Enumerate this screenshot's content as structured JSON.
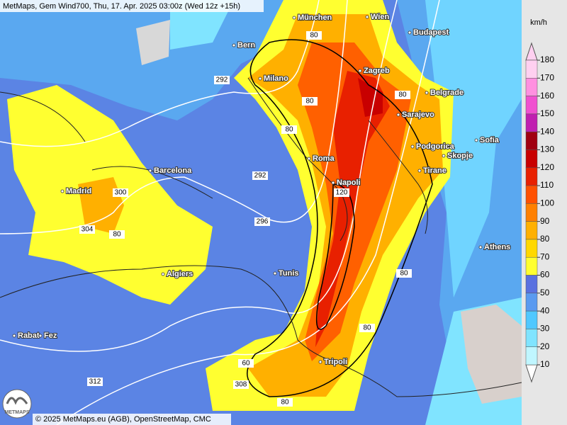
{
  "header": {
    "title": "MetMaps, Gem Wind700, Thu, 17. Apr. 2025 03:00z (Wed 12z +15h)"
  },
  "footer": {
    "copyright": "© 2025 MetMaps.eu (AGB), OpenStreetMap, CMC",
    "logo": "METMAPS"
  },
  "cities": [
    "München",
    "Wien",
    "Bern",
    "Budapest",
    "Zagreb",
    "Milano",
    "Belgrade",
    "Sarajevo",
    "Sofia",
    "Podgorica",
    "Skopje",
    "Roma",
    "Barcelona",
    "Tirane",
    "Napoli",
    "Madrid",
    "Athens",
    "Algiers",
    "Tunis",
    "Rabat",
    "Fez",
    "Tripoli"
  ],
  "contour_labels": [
    "80",
    "292",
    "80",
    "80",
    "80",
    "292",
    "300",
    "304",
    "80",
    "296",
    "120",
    "80",
    "80",
    "60",
    "308",
    "312",
    "80"
  ],
  "legend": {
    "unit": "km/h",
    "ticks": [
      180,
      170,
      160,
      150,
      140,
      130,
      120,
      110,
      100,
      90,
      80,
      70,
      60,
      50,
      40,
      30,
      20,
      10
    ],
    "colors": [
      "#ffd0f0",
      "#ff90e0",
      "#f050d0",
      "#c020b0",
      "#a00010",
      "#c80000",
      "#e82000",
      "#ff5000",
      "#ff8000",
      "#ffb000",
      "#ffd800",
      "#ffff30",
      "#5a70e0",
      "#5a9af0",
      "#50c8ff",
      "#80e4ff",
      "#c0f6ff"
    ]
  }
}
